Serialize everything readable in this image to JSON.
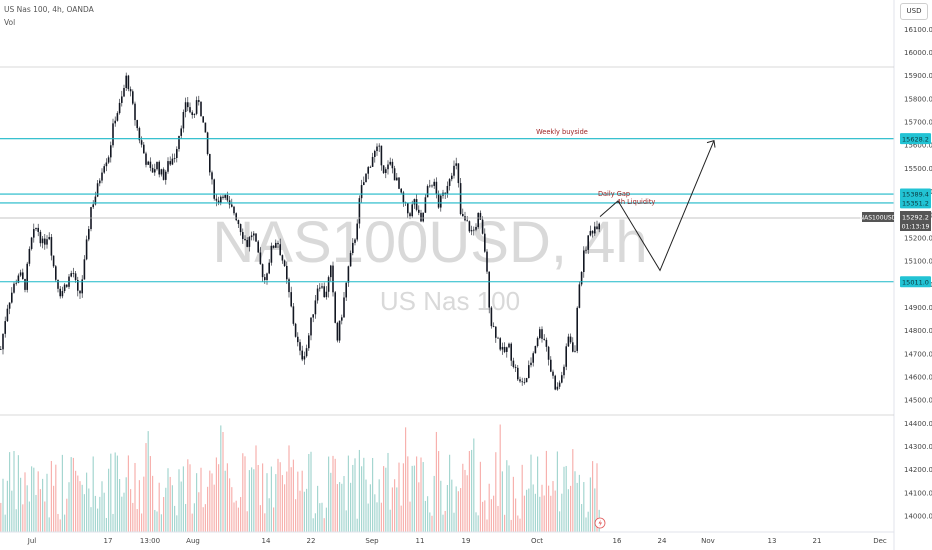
{
  "header": {
    "symbol_line": "US Nas 100, 4h, OANDA",
    "volume_label": "Vol",
    "currency_button": "USD"
  },
  "watermark": {
    "main": "NAS100USD, 4h",
    "sub": "US Nas 100"
  },
  "colors": {
    "candle": "#131722",
    "vol_up": "#a5d6d0",
    "vol_down": "#f7b1ae",
    "level_line": "#1cb8c8",
    "annotation_text": "#9b1c1c",
    "price_tag_bg": "#555555",
    "level_tag_bg": "#22c3d4"
  },
  "chart_data": {
    "type": "candlestick",
    "symbol": "NAS100USD",
    "timeframe": "4h",
    "exchange": "OANDA",
    "ylim": [
      13950,
      16200
    ],
    "price_ticks": [
      16100,
      16000,
      15900,
      15800,
      15700,
      15600,
      15500,
      15400,
      15300,
      15200,
      15100,
      15000,
      14900,
      14800,
      14700,
      14600,
      14500,
      14400,
      14300,
      14200,
      14100,
      14000
    ],
    "x_ticks": [
      "Jul",
      "17",
      "13:00",
      "Aug",
      "14",
      "22",
      "Sep",
      "11",
      "19",
      "Oct",
      "16",
      "24",
      "Nov",
      "13",
      "21",
      "Dec"
    ],
    "current_price": {
      "label": "NAS100USD",
      "value": "15292.2",
      "countdown": "01:13:19"
    },
    "levels": [
      {
        "value": 15628.2,
        "label": "15628.2"
      },
      {
        "value": 15389.4,
        "label": "15389.4"
      },
      {
        "value": 15351.2,
        "label": "15351.2"
      },
      {
        "value": 15011.0,
        "label": "15011.0"
      }
    ],
    "annotations": [
      {
        "text": "Weekly buyside"
      },
      {
        "text": "Daily Gap"
      },
      {
        "text": "4h Liquidity"
      }
    ],
    "projection_path": [
      [
        15292,
        0
      ],
      [
        15360,
        1
      ],
      [
        15060,
        2
      ],
      [
        15620,
        3
      ]
    ],
    "series_path": [
      [
        0,
        14720
      ],
      [
        6,
        14900
      ],
      [
        12,
        14980
      ],
      [
        18,
        15050
      ],
      [
        24,
        14990
      ],
      [
        30,
        15180
      ],
      [
        36,
        15250
      ],
      [
        42,
        15170
      ],
      [
        48,
        15230
      ],
      [
        54,
        15040
      ],
      [
        60,
        14960
      ],
      [
        66,
        15010
      ],
      [
        72,
        15060
      ],
      [
        78,
        14930
      ],
      [
        84,
        15100
      ],
      [
        90,
        15330
      ],
      [
        96,
        15400
      ],
      [
        102,
        15520
      ],
      [
        108,
        15560
      ],
      [
        114,
        15720
      ],
      [
        120,
        15780
      ],
      [
        126,
        15900
      ],
      [
        132,
        15760
      ],
      [
        138,
        15640
      ],
      [
        144,
        15550
      ],
      [
        150,
        15480
      ],
      [
        156,
        15520
      ],
      [
        162,
        15460
      ],
      [
        168,
        15520
      ],
      [
        174,
        15560
      ],
      [
        180,
        15690
      ],
      [
        186,
        15780
      ],
      [
        192,
        15720
      ],
      [
        198,
        15800
      ],
      [
        204,
        15650
      ],
      [
        210,
        15450
      ],
      [
        216,
        15350
      ],
      [
        222,
        15400
      ],
      [
        228,
        15330
      ],
      [
        234,
        15310
      ],
      [
        240,
        15240
      ],
      [
        246,
        15170
      ],
      [
        252,
        15230
      ],
      [
        258,
        15100
      ],
      [
        264,
        15020
      ],
      [
        270,
        15140
      ],
      [
        276,
        15200
      ],
      [
        282,
        15100
      ],
      [
        288,
        14960
      ],
      [
        294,
        14800
      ],
      [
        300,
        14680
      ],
      [
        306,
        14730
      ],
      [
        312,
        14880
      ],
      [
        318,
        15020
      ],
      [
        324,
        14950
      ],
      [
        330,
        15060
      ],
      [
        336,
        14750
      ],
      [
        342,
        14900
      ],
      [
        348,
        15080
      ],
      [
        354,
        15200
      ],
      [
        360,
        15400
      ],
      [
        366,
        15480
      ],
      [
        372,
        15560
      ],
      [
        378,
        15580
      ],
      [
        384,
        15480
      ],
      [
        390,
        15520
      ],
      [
        396,
        15440
      ],
      [
        402,
        15350
      ],
      [
        408,
        15300
      ],
      [
        414,
        15360
      ],
      [
        420,
        15250
      ],
      [
        426,
        15400
      ],
      [
        432,
        15450
      ],
      [
        438,
        15340
      ],
      [
        444,
        15400
      ],
      [
        450,
        15490
      ],
      [
        456,
        15510
      ],
      [
        460,
        15290
      ],
      [
        466,
        15260
      ],
      [
        472,
        15220
      ],
      [
        478,
        15300
      ],
      [
        484,
        15150
      ],
      [
        490,
        14840
      ],
      [
        496,
        14780
      ],
      [
        502,
        14700
      ],
      [
        508,
        14730
      ],
      [
        514,
        14640
      ],
      [
        520,
        14560
      ],
      [
        526,
        14600
      ],
      [
        532,
        14700
      ],
      [
        538,
        14800
      ],
      [
        544,
        14770
      ],
      [
        550,
        14630
      ],
      [
        556,
        14540
      ],
      [
        562,
        14620
      ],
      [
        568,
        14780
      ],
      [
        574,
        14700
      ],
      [
        578,
        15000
      ],
      [
        584,
        15150
      ],
      [
        590,
        15230
      ],
      [
        596,
        15260
      ],
      [
        600,
        15292
      ]
    ]
  }
}
